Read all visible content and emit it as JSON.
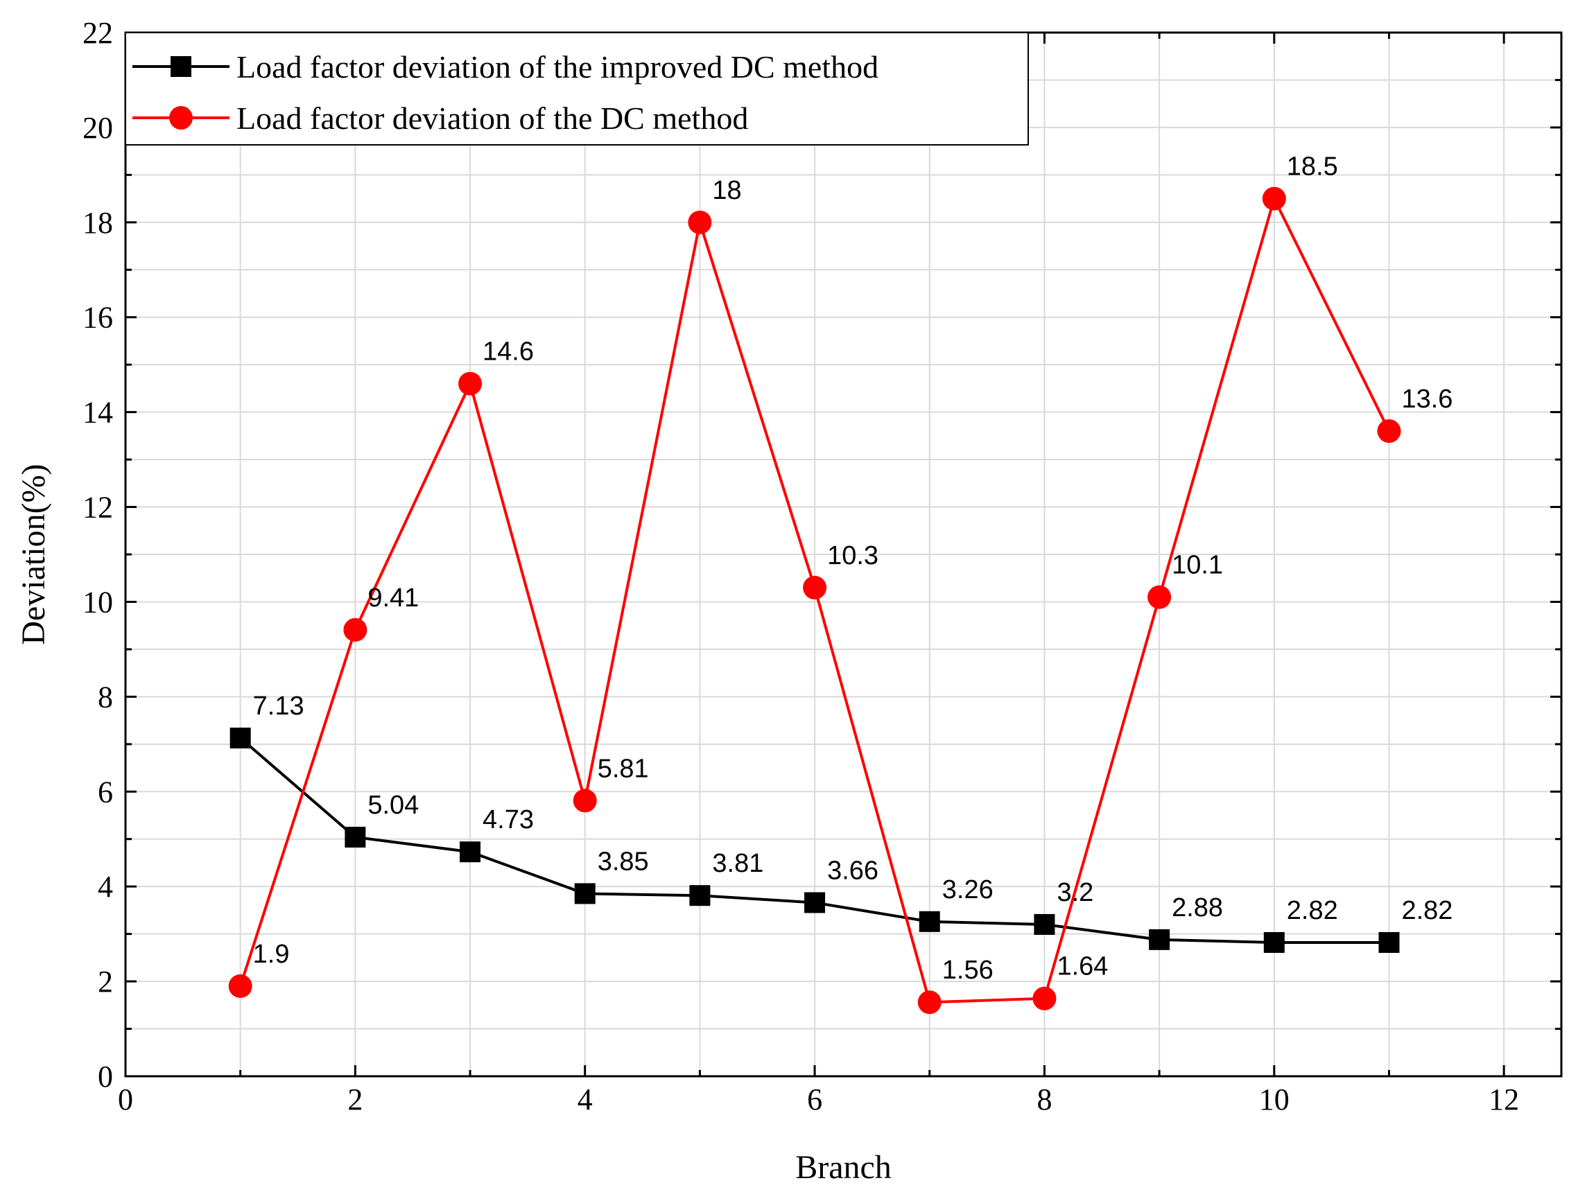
{
  "chart_data": {
    "type": "line",
    "title": "",
    "xlabel": "Branch",
    "ylabel": "Deviation(%)",
    "xlim": [
      0,
      12.5
    ],
    "ylim": [
      0,
      22
    ],
    "xticks": [
      0,
      2,
      4,
      6,
      8,
      10,
      12
    ],
    "yticks": [
      0,
      2,
      4,
      6,
      8,
      10,
      12,
      14,
      16,
      18,
      20,
      22
    ],
    "grid": true,
    "legend_position": "top-left",
    "series": [
      {
        "name": "Load factor deviation of the improved DC method",
        "color": "#000000",
        "marker": "square",
        "x": [
          1,
          2,
          3,
          4,
          5,
          6,
          7,
          8,
          9,
          10,
          11
        ],
        "values": [
          7.13,
          5.04,
          4.73,
          3.85,
          3.81,
          3.66,
          3.26,
          3.2,
          2.88,
          2.82,
          2.82
        ],
        "labels": [
          "7.13",
          "5.04",
          "4.73",
          "3.85",
          "3.81",
          "3.66",
          "3.26",
          "3.2",
          "2.88",
          "2.82",
          "2.82"
        ]
      },
      {
        "name": "Load factor deviation of the DC method",
        "color": "#ff0000",
        "marker": "circle",
        "x": [
          1,
          2,
          3,
          4,
          5,
          6,
          7,
          8,
          9,
          10,
          11
        ],
        "values": [
          1.9,
          9.41,
          14.6,
          5.81,
          18,
          10.3,
          1.56,
          1.64,
          10.1,
          18.5,
          13.6
        ],
        "labels": [
          "1.9",
          "9.41",
          "14.6",
          "5.81",
          "18",
          "10.3",
          "1.56",
          "1.64",
          "10.1",
          "18.5",
          "13.6"
        ]
      }
    ]
  }
}
